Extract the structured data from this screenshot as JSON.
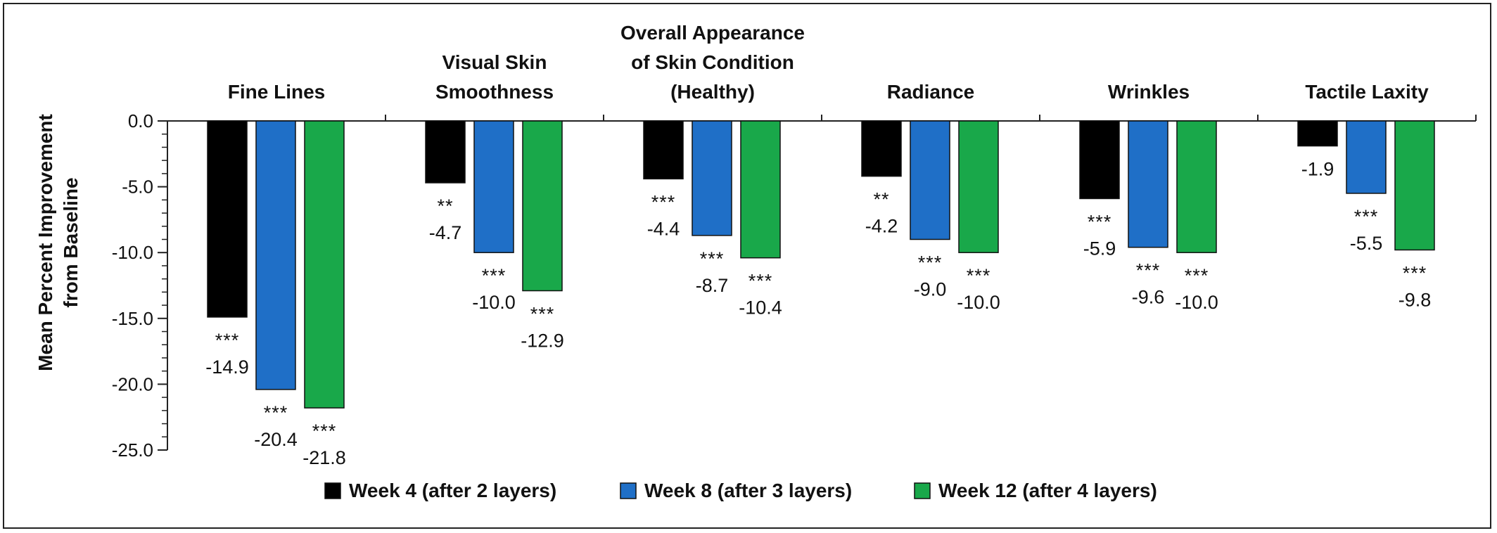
{
  "chart_data": {
    "type": "bar",
    "title": "",
    "xlabel": "",
    "ylabel_lines": [
      "Mean Percent Improvement",
      "from Baseline"
    ],
    "ylim": [
      -25,
      0
    ],
    "yticks": [
      "0.0",
      "-5.0",
      "-10.0",
      "-15.0",
      "-20.0",
      "-25.0"
    ],
    "ytick_values": [
      0,
      -5,
      -10,
      -15,
      -20,
      -25
    ],
    "categories": [
      [
        "Fine Lines"
      ],
      [
        "Visual Skin",
        "Smoothness"
      ],
      [
        "Overall Appearance",
        "of Skin Condition",
        "(Healthy)"
      ],
      [
        "Radiance"
      ],
      [
        "Wrinkles"
      ],
      [
        "Tactile Laxity"
      ]
    ],
    "series": [
      {
        "name": "Week 4 (after 2 layers)",
        "color": "#000000",
        "values": [
          -14.9,
          -4.7,
          -4.4,
          -4.2,
          -5.9,
          -1.9
        ],
        "labels": [
          "-14.9",
          "-4.7",
          "-4.4",
          "-4.2",
          "-5.9",
          "-1.9"
        ],
        "significance": [
          "***",
          "**",
          "***",
          "**",
          "***",
          ""
        ]
      },
      {
        "name": "Week 8 (after 3 layers)",
        "color": "#1f6fc7",
        "values": [
          -20.4,
          -10.0,
          -8.7,
          -9.0,
          -9.6,
          -5.5
        ],
        "labels": [
          "-20.4",
          "-10.0",
          "-8.7",
          "-9.0",
          "-9.6",
          "-5.5"
        ],
        "significance": [
          "***",
          "***",
          "***",
          "***",
          "***",
          "***"
        ]
      },
      {
        "name": "Week 12 (after 4 layers)",
        "color": "#19a84a",
        "values": [
          -21.8,
          -12.9,
          -10.4,
          -10.0,
          -10.0,
          -9.8
        ],
        "labels": [
          "-21.8",
          "-12.9",
          "-10.4",
          "-10.0",
          "-10.0",
          "-9.8"
        ],
        "significance": [
          "***",
          "***",
          "***",
          "***",
          "***",
          "***"
        ]
      }
    ],
    "legend_position": "bottom",
    "grid": false
  }
}
